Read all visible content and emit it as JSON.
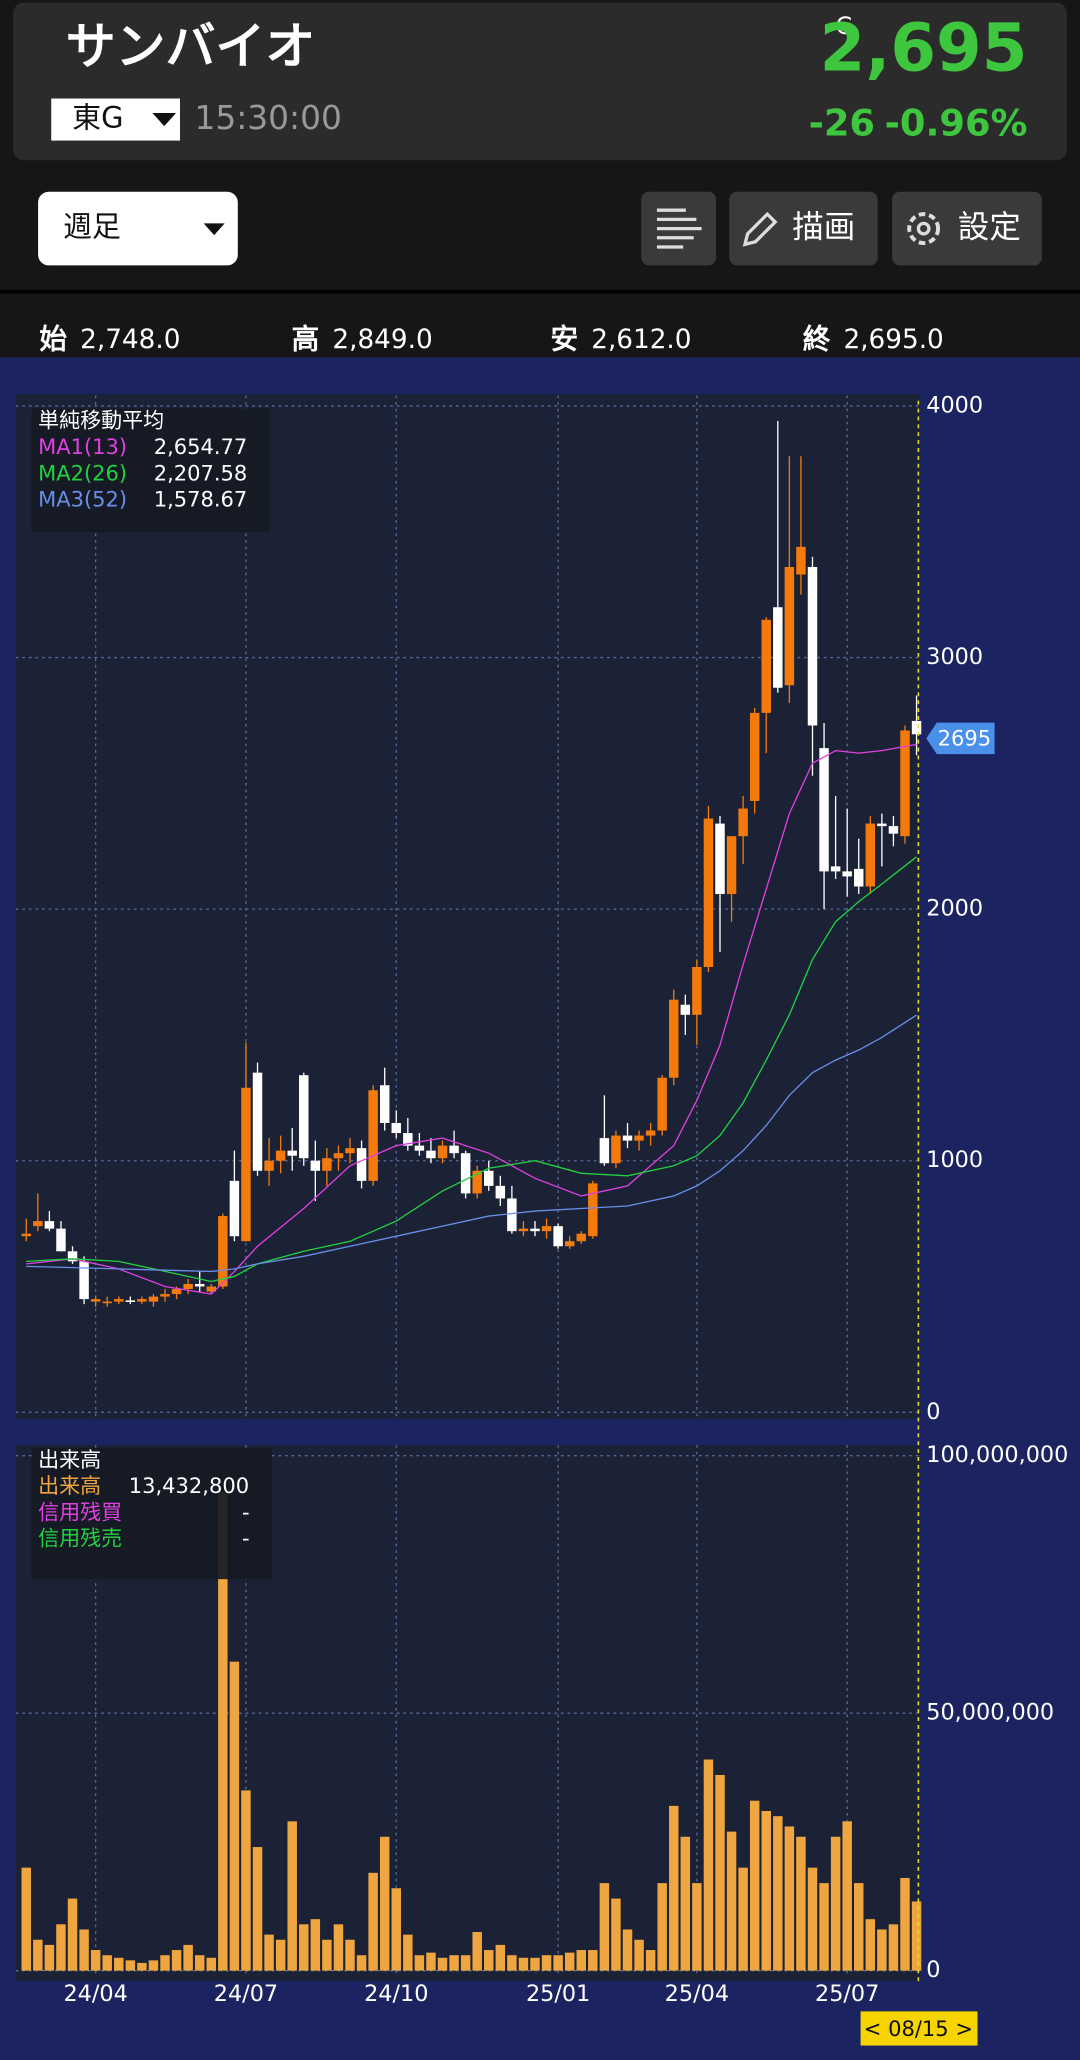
{
  "header": {
    "name": "サンバイオ",
    "market": "東G",
    "time": "15:30:00",
    "close_flag": "C",
    "price": "2,695",
    "change": "-26",
    "change_pct": "-0.96%"
  },
  "toolbar": {
    "period": "週足",
    "draw": "描画",
    "settings": "設定"
  },
  "ohlc_bar": [
    {
      "label": "始",
      "value": "2,748.0"
    },
    {
      "label": "高",
      "value": "2,849.0"
    },
    {
      "label": "安",
      "value": "2,612.0"
    },
    {
      "label": "終",
      "value": "2,695.0"
    }
  ],
  "price_tag": "2695",
  "date_badge": "< 08/15 >",
  "chart_data": [
    {
      "type": "candlestick",
      "legend_title": "単純移動平均",
      "categories": [
        null,
        null,
        null,
        null,
        null,
        null,
        "24/04",
        null,
        null,
        null,
        null,
        null,
        null,
        null,
        null,
        null,
        null,
        null,
        null,
        "24/07",
        null,
        null,
        null,
        null,
        null,
        null,
        null,
        null,
        null,
        null,
        null,
        null,
        "24/10",
        null,
        null,
        null,
        null,
        null,
        null,
        null,
        null,
        null,
        null,
        null,
        null,
        null,
        "25/01",
        null,
        null,
        null,
        null,
        null,
        null,
        null,
        null,
        null,
        null,
        null,
        "25/04",
        null,
        null,
        null,
        null,
        null,
        null,
        null,
        null,
        null,
        null,
        null,
        null,
        "25/07",
        null,
        null,
        null,
        null,
        null,
        null
      ],
      "open": [
        700,
        740,
        760,
        730,
        640,
        600,
        440,
        440,
        440,
        445,
        440,
        440,
        460,
        470,
        490,
        510,
        480,
        500,
        920,
        680,
        1350,
        960,
        1000,
        1040,
        1340,
        1000,
        960,
        1010,
        1030,
        1050,
        920,
        1300,
        1150,
        1110,
        1060,
        1040,
        1010,
        1060,
        1030,
        870,
        960,
        900,
        850,
        720,
        730,
        720,
        740,
        660,
        680,
        700,
        1090,
        990,
        1100,
        1080,
        1100,
        1120,
        1330,
        1620,
        1580,
        1770,
        2340,
        2060,
        2290,
        2430,
        2780,
        3200,
        2890,
        3330,
        3360,
        2640,
        2170,
        2150,
        2160,
        2090,
        2340,
        2330,
        2290,
        2748
      ],
      "high": [
        770,
        870,
        800,
        760,
        660,
        620,
        460,
        460,
        460,
        460,
        460,
        470,
        490,
        500,
        530,
        560,
        510,
        790,
        1040,
        1470,
        1390,
        1090,
        1100,
        1130,
        1350,
        1080,
        1050,
        1060,
        1090,
        1080,
        1300,
        1370,
        1200,
        1170,
        1110,
        1090,
        1080,
        1120,
        1040,
        980,
        1000,
        940,
        900,
        760,
        760,
        770,
        750,
        700,
        720,
        920,
        1260,
        1120,
        1150,
        1120,
        1150,
        1340,
        1680,
        1660,
        1800,
        2410,
        2370,
        2290,
        2450,
        2800,
        3160,
        3940,
        3800,
        3800,
        3400,
        2740,
        2450,
        2400,
        2280,
        2370,
        2380,
        2370,
        2730,
        2849
      ],
      "low": [
        680,
        720,
        720,
        640,
        590,
        430,
        420,
        420,
        430,
        430,
        430,
        420,
        440,
        450,
        470,
        480,
        470,
        490,
        680,
        680,
        940,
        900,
        950,
        960,
        980,
        840,
        900,
        960,
        990,
        890,
        900,
        1120,
        1090,
        1040,
        1020,
        990,
        990,
        1010,
        850,
        850,
        880,
        820,
        710,
        700,
        700,
        690,
        650,
        650,
        670,
        690,
        980,
        970,
        1050,
        1040,
        1060,
        1100,
        1300,
        1500,
        1460,
        1750,
        1830,
        1950,
        2180,
        2380,
        2620,
        2860,
        2820,
        3250,
        2530,
        2000,
        2120,
        2050,
        2060,
        2060,
        2170,
        2250,
        2260,
        2612
      ],
      "close": [
        710,
        760,
        730,
        640,
        600,
        450,
        450,
        440,
        450,
        440,
        450,
        460,
        470,
        490,
        510,
        500,
        500,
        780,
        700,
        1290,
        960,
        1000,
        1040,
        1020,
        1010,
        960,
        1010,
        1030,
        1050,
        920,
        1280,
        1150,
        1110,
        1060,
        1040,
        1010,
        1060,
        1030,
        870,
        960,
        900,
        850,
        720,
        730,
        720,
        740,
        660,
        680,
        710,
        910,
        990,
        1100,
        1080,
        1100,
        1120,
        1330,
        1640,
        1580,
        1770,
        2360,
        2060,
        2290,
        2400,
        2780,
        3150,
        2880,
        3360,
        3440,
        2730,
        2150,
        2150,
        2130,
        2090,
        2340,
        2330,
        2300,
        2710,
        2695
      ],
      "up_color": "#f47a0c",
      "down_color": "#ffffff",
      "series": [
        {
          "name": "MA1(13)",
          "color": "#e040e0",
          "last_label": "2,654.77",
          "x": [
            0,
            4,
            8,
            12,
            16,
            18,
            20,
            24,
            28,
            32,
            36,
            40,
            44,
            48,
            52,
            56,
            58,
            60,
            62,
            64,
            66,
            68,
            70,
            72,
            74,
            77
          ],
          "values": [
            590,
            610,
            570,
            500,
            470,
            560,
            660,
            810,
            980,
            1060,
            1090,
            1030,
            930,
            860,
            900,
            1060,
            1240,
            1460,
            1780,
            2080,
            2380,
            2580,
            2630,
            2620,
            2630,
            2655
          ]
        },
        {
          "name": "MA2(26)",
          "color": "#22d040",
          "last_label": "2,207.58",
          "x": [
            0,
            4,
            8,
            12,
            16,
            18,
            20,
            24,
            28,
            32,
            36,
            40,
            44,
            48,
            52,
            56,
            58,
            60,
            62,
            64,
            66,
            68,
            70,
            72,
            74,
            77
          ],
          "values": [
            600,
            610,
            600,
            560,
            520,
            540,
            590,
            640,
            680,
            760,
            880,
            970,
            1000,
            950,
            940,
            980,
            1020,
            1100,
            1230,
            1400,
            1580,
            1800,
            1950,
            2030,
            2100,
            2208
          ]
        },
        {
          "name": "MA3(52)",
          "color": "#6a8ee8",
          "last_label": "1,578.67",
          "x": [
            0,
            4,
            8,
            12,
            16,
            18,
            20,
            24,
            28,
            32,
            36,
            40,
            44,
            48,
            52,
            56,
            58,
            60,
            62,
            64,
            66,
            68,
            70,
            72,
            74,
            77
          ],
          "values": [
            580,
            575,
            570,
            565,
            560,
            570,
            590,
            620,
            660,
            700,
            740,
            780,
            800,
            810,
            820,
            860,
            900,
            960,
            1040,
            1140,
            1260,
            1350,
            1400,
            1440,
            1490,
            1579
          ]
        }
      ],
      "ylim": [
        0,
        4000
      ],
      "yticks": [
        0,
        1000,
        2000,
        3000,
        4000
      ],
      "grid": true
    },
    {
      "type": "bar",
      "title": "出来高",
      "series": [
        {
          "name": "出来高",
          "color": "#f0a640",
          "last_label": "13,432,800",
          "values": [
            20000000,
            6000000,
            5000000,
            9000000,
            14000000,
            8000000,
            4000000,
            3000000,
            2500000,
            2000000,
            1500000,
            2000000,
            3000000,
            4000000,
            5000000,
            3000000,
            2500000,
            93000000,
            60000000,
            35000000,
            24000000,
            7000000,
            6000000,
            29000000,
            9000000,
            10000000,
            6000000,
            9000000,
            6000000,
            3000000,
            19000000,
            26000000,
            16000000,
            7000000,
            3000000,
            3500000,
            2500000,
            3000000,
            3000000,
            7500000,
            4000000,
            5000000,
            3000000,
            2500000,
            2500000,
            3000000,
            3000000,
            3500000,
            4000000,
            4000000,
            17000000,
            14000000,
            8000000,
            6000000,
            4000000,
            17000000,
            32000000,
            26000000,
            17000000,
            41000000,
            38000000,
            27000000,
            20000000,
            33000000,
            31000000,
            30000000,
            28000000,
            26000000,
            20000000,
            17000000,
            26000000,
            29000000,
            17000000,
            10000000,
            8000000,
            9000000,
            18000000,
            13432800
          ]
        }
      ],
      "legend_extra": [
        {
          "name": "信用残買",
          "color": "#e040e0",
          "label": "-"
        },
        {
          "name": "信用残売",
          "color": "#22d040",
          "label": "-"
        }
      ],
      "ylim": [
        0,
        100000000
      ],
      "yticks": [
        0,
        {
          "value": 50000000,
          "label": "50,000,000"
        },
        {
          "value": 100000000,
          "label": "100,000,000"
        }
      ],
      "grid": true
    }
  ]
}
